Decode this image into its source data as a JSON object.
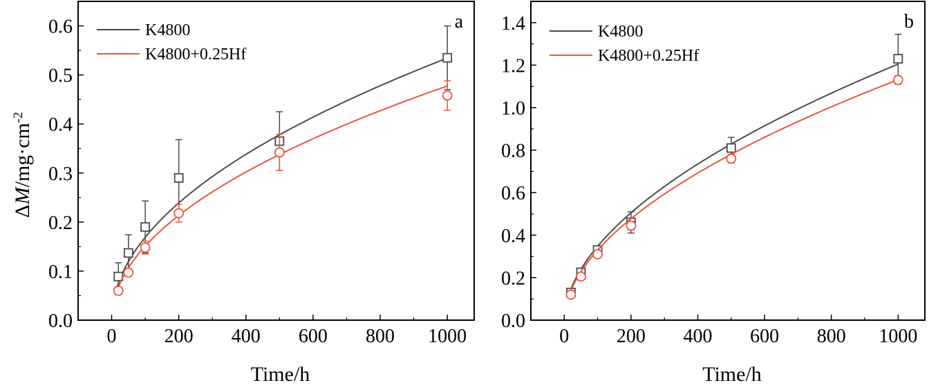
{
  "chart_data": [
    {
      "type": "scatter",
      "panel_label": "a",
      "xlabel": "Time/h",
      "ylabel": {
        "prefix": "Δ",
        "italic": "M",
        "rest": "/mg·cm",
        "sup": "-2"
      },
      "xlim": [
        -100,
        1080
      ],
      "ylim": [
        0,
        0.65
      ],
      "xticks": [
        0,
        200,
        400,
        600,
        800,
        1000
      ],
      "yticks": [
        0.0,
        0.1,
        0.2,
        0.3,
        0.4,
        0.5,
        0.6
      ],
      "ytick_labels": [
        "0.0",
        "0.1",
        "0.2",
        "0.3",
        "0.4",
        "0.5",
        "0.6"
      ],
      "legend_position": "top-left",
      "series": [
        {
          "name": "K4800",
          "color": "#4a4a4a",
          "marker": "square",
          "x": [
            20,
            50,
            100,
            200,
            500,
            1000
          ],
          "y": [
            0.089,
            0.137,
            0.19,
            0.29,
            0.365,
            0.535
          ],
          "err": [
            0.028,
            0.037,
            0.053,
            0.078,
            0.06,
            0.065
          ],
          "fit": {
            "k": 0.0169,
            "n": 0.5
          }
        },
        {
          "name": "K4800+0.25Hf",
          "color": "#e8553f",
          "marker": "circle",
          "x": [
            20,
            50,
            100,
            200,
            500,
            1000
          ],
          "y": [
            0.06,
            0.097,
            0.148,
            0.218,
            0.342,
            0.458
          ],
          "err": [
            0.008,
            0.008,
            0.013,
            0.018,
            0.037,
            0.03
          ],
          "fit": {
            "k": 0.0151,
            "n": 0.5
          }
        }
      ]
    },
    {
      "type": "scatter",
      "panel_label": "b",
      "xlabel": "Time/h",
      "xlim": [
        -100,
        1080
      ],
      "ylim": [
        0,
        1.5
      ],
      "xticks": [
        0,
        200,
        400,
        600,
        800,
        1000
      ],
      "yticks": [
        0.0,
        0.2,
        0.4,
        0.6,
        0.8,
        1.0,
        1.2,
        1.4
      ],
      "ytick_labels": [
        "0.0",
        "0.2",
        "0.4",
        "0.6",
        "0.8",
        "1.0",
        "1.2",
        "1.4"
      ],
      "legend_position": "top-left",
      "series": [
        {
          "name": "K4800",
          "color": "#4a4a4a",
          "marker": "square",
          "x": [
            20,
            50,
            100,
            200,
            500,
            1000
          ],
          "y": [
            0.13,
            0.225,
            0.33,
            0.46,
            0.81,
            1.23
          ],
          "err": [
            0.015,
            0.015,
            0.015,
            0.05,
            0.05,
            0.115
          ],
          "fit": {
            "k": 0.0289,
            "n": 0.54
          }
        },
        {
          "name": "K4800+0.25Hf",
          "color": "#e8553f",
          "marker": "circle",
          "x": [
            20,
            50,
            100,
            200,
            500,
            1000
          ],
          "y": [
            0.12,
            0.205,
            0.31,
            0.445,
            0.76,
            1.13
          ],
          "err": [
            0.015,
            0.012,
            0.015,
            0.02,
            0.02,
            0.02
          ],
          "fit": {
            "k": 0.0279,
            "n": 0.536
          }
        }
      ]
    }
  ]
}
